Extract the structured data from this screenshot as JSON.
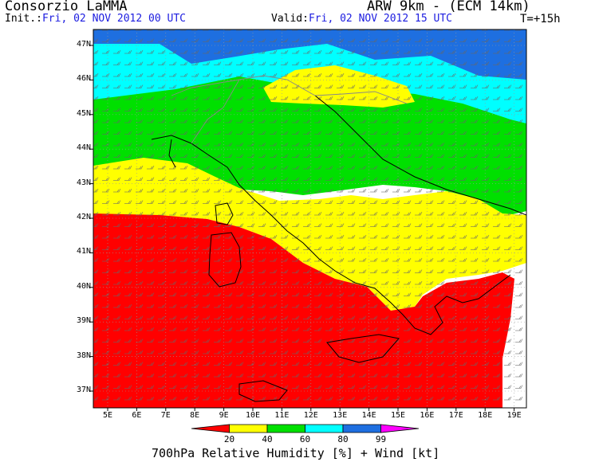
{
  "header": {
    "organization": "Consorzio LaMMA",
    "model": "ARW 9km - (ECM 14km)",
    "init_label": "Init.:",
    "init_value": "Fri, 02 NOV 2012  00 UTC",
    "valid_label": "Valid:",
    "valid_value": "Fri, 02 NOV 2012  15 UTC",
    "timestep": "T=+15h"
  },
  "map": {
    "latitude_labels": [
      "47N",
      "46N",
      "45N",
      "44N",
      "43N",
      "42N",
      "41N",
      "40N",
      "39N",
      "38N",
      "37N"
    ],
    "longitude_labels": [
      "5E",
      "6E",
      "7E",
      "8E",
      "9E",
      "10E",
      "11E",
      "12E",
      "13E",
      "14E",
      "15E",
      "16E",
      "17E",
      "18E",
      "19E"
    ],
    "colors": {
      "magenta": "#ff00ff",
      "blue": "#1e6fe0",
      "cyan": "#00ffff",
      "green": "#00e000",
      "yellow": "#ffff00",
      "red": "#ff0000",
      "coastline": "#000000",
      "borders": "#808080",
      "wind_barbs": "#666666"
    }
  },
  "colorbar": {
    "ticks": [
      "20",
      "40",
      "60",
      "80",
      "99"
    ],
    "colors": [
      "#ff0000",
      "#ffff00",
      "#00e000",
      "#00ffff",
      "#1e6fe0",
      "#ff00ff"
    ]
  },
  "footer": {
    "title": "700hPa Relative Humidity [%] + Wind [kt]"
  }
}
